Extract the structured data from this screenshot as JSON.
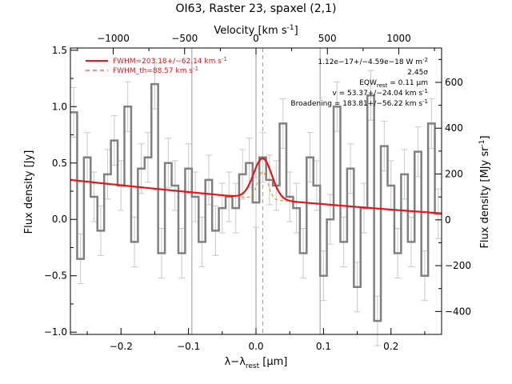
{
  "chart_data": {
    "type": "line",
    "title": "OI63, Raster 23, spaxel (2,1)",
    "xlabel": "λ−λ",
    "xlabel_sub": "rest",
    "xlabel_unit": " [μm]",
    "ylabel": "Flux density [Jy]",
    "x2label": "Velocity [km s",
    "x2label_sup": "-1",
    "x2label_end": "]",
    "y2label": "Flux density [MJy sr",
    "y2label_sup": "-1",
    "y2label_end": "]",
    "xlim": [
      -0.275,
      0.275
    ],
    "ylim": [
      -1.02,
      1.52
    ],
    "x2lim": [
      -1300,
      1300
    ],
    "y2lim": [
      -500,
      750
    ],
    "xticks": [
      -0.2,
      -0.1,
      0.0,
      0.1,
      0.2
    ],
    "xtick_labels": [
      "−0.2",
      "−0.1",
      "0.0",
      "0.1",
      "0.2"
    ],
    "yticks": [
      -1.0,
      -0.5,
      0.0,
      0.5,
      1.0,
      1.5
    ],
    "ytick_labels": [
      "−1.0",
      "−0.5",
      "0.0",
      "0.5",
      "1.0",
      "1.5"
    ],
    "x2ticks": [
      -1000,
      -500,
      0,
      500,
      1000
    ],
    "x2tick_labels": [
      "−1000",
      "−500",
      "0",
      "500",
      "1000"
    ],
    "y2ticks": [
      -400,
      -200,
      0,
      200,
      400,
      600
    ],
    "y2tick_labels": [
      "−400",
      "−200",
      "0",
      "200",
      "400",
      "600"
    ],
    "vlines": [
      -0.095,
      0.0,
      0.095
    ],
    "dashed_vline": 0.01,
    "legend": {
      "placement": "top-left",
      "entries": [
        {
          "label": "FWHM=203.18+/−62.14 km s",
          "sup": "-1",
          "style": "solid"
        },
        {
          "label": "FWHM_th=88.57 km s",
          "sup": "-1",
          "style": "dashed"
        }
      ]
    },
    "annotations": [
      {
        "text": "1.12e−17+/−4.59e−18 W m",
        "sup": "-2"
      },
      {
        "text": "2.45σ"
      },
      {
        "text": "EQW",
        "sub": "rest",
        "rest": " = 0.11 μm"
      },
      {
        "text": "v = 53.37+/−24.04 km s",
        "sup": "-1"
      },
      {
        "text": "Broadening = 183.81+/−56.22 km s",
        "sup": "-1"
      }
    ],
    "series": [
      {
        "style": "histogram",
        "color": "#808080",
        "x": [
          -0.27,
          -0.26,
          -0.25,
          -0.24,
          -0.23,
          -0.22,
          -0.21,
          -0.2,
          -0.19,
          -0.18,
          -0.17,
          -0.16,
          -0.15,
          -0.14,
          -0.13,
          -0.12,
          -0.11,
          -0.1,
          -0.09,
          -0.08,
          -0.07,
          -0.06,
          -0.05,
          -0.04,
          -0.03,
          -0.02,
          -0.01,
          0.0,
          0.01,
          0.02,
          0.03,
          0.04,
          0.05,
          0.06,
          0.07,
          0.08,
          0.09,
          0.1,
          0.11,
          0.12,
          0.13,
          0.14,
          0.15,
          0.16,
          0.17,
          0.18,
          0.19,
          0.2,
          0.21,
          0.22,
          0.23,
          0.24,
          0.25,
          0.26,
          0.27
        ],
        "y": [
          0.95,
          -0.35,
          0.55,
          0.2,
          -0.1,
          0.4,
          0.7,
          0.3,
          1.0,
          -0.2,
          0.45,
          0.55,
          1.2,
          -0.3,
          0.5,
          0.3,
          -0.3,
          0.45,
          0.2,
          -0.2,
          0.35,
          -0.1,
          0.1,
          0.2,
          0.1,
          0.4,
          0.5,
          0.15,
          0.55,
          0.35,
          0.3,
          0.85,
          0.2,
          0.1,
          -0.3,
          0.55,
          0.3,
          -0.5,
          0.0,
          1.0,
          -0.2,
          0.45,
          -0.6,
          0.1,
          1.1,
          -0.9,
          0.65,
          0.3,
          -0.3,
          0.4,
          -0.2,
          0.6,
          -0.5,
          0.85,
          0.05
        ],
        "yerr": 0.22
      },
      {
        "name": "FWHM",
        "style": "fit",
        "color": "#e8141a",
        "baseline": {
          "a": 0.187,
          "b": -0.54,
          "c": 0.2
        },
        "gauss": {
          "amp": 0.36,
          "center": 0.01,
          "sigma": 0.0135
        }
      },
      {
        "name": "FWHM_th",
        "style": "dashed",
        "color": "#e8861a",
        "gauss": {
          "amp": 0.24,
          "center": 0.01,
          "sigma": 0.0075
        }
      }
    ]
  }
}
